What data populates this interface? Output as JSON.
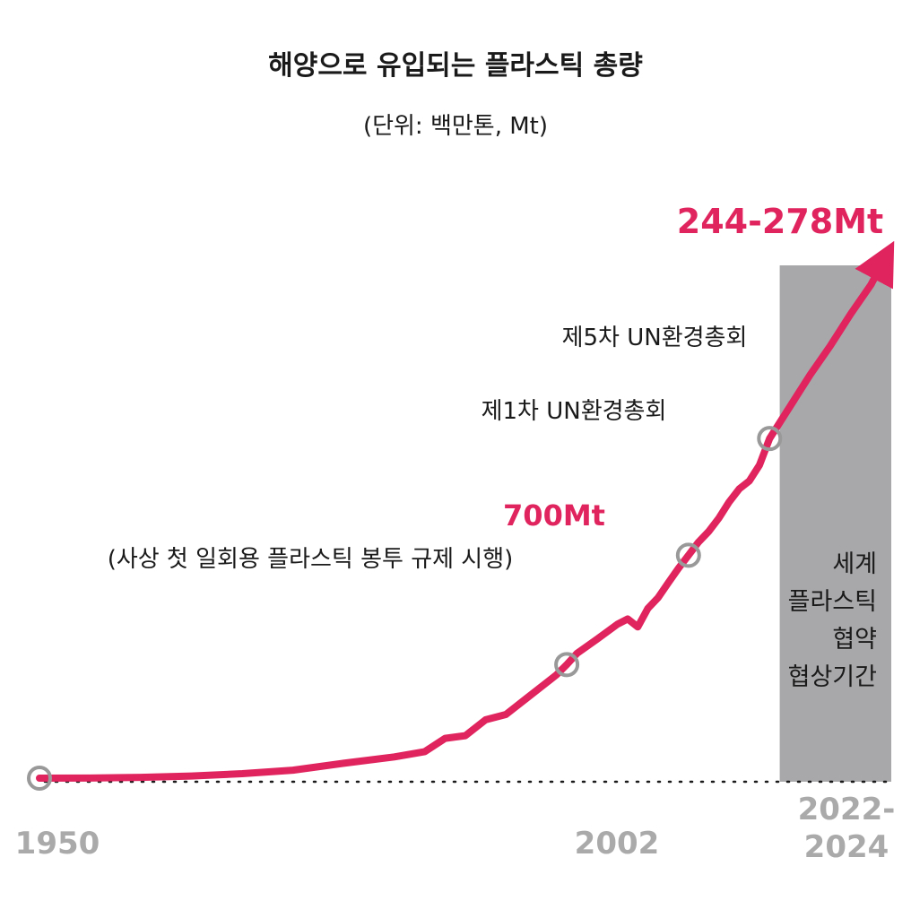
{
  "title": "해양으로 유입되는 플라스틱 총량",
  "subtitle": "(단위: 백만톤, Mt)",
  "colors": {
    "line": "#e0245e",
    "marker": "#999999",
    "band": "#a8a8ab",
    "axis_label": "#aaaaaa",
    "text": "#1a1a1a"
  },
  "chart_data": {
    "type": "line",
    "x_tick_labels": [
      "1950",
      "2002",
      "2022-\n2024"
    ],
    "series": [
      {
        "values": [
          [
            1950,
            0
          ],
          [
            1955,
            0.2
          ],
          [
            1960,
            1.5
          ],
          [
            1965,
            4
          ],
          [
            1970,
            8.5
          ],
          [
            1975,
            15
          ],
          [
            1980,
            28
          ],
          [
            1985,
            40
          ],
          [
            1988,
            50
          ],
          [
            1990,
            75
          ],
          [
            1992,
            80
          ],
          [
            1994,
            110
          ],
          [
            1996,
            120
          ],
          [
            1998,
            150
          ],
          [
            2000,
            180
          ],
          [
            2001,
            195
          ],
          [
            2002,
            214
          ],
          [
            2003,
            235
          ],
          [
            2005,
            262
          ],
          [
            2007,
            290
          ],
          [
            2008,
            300
          ],
          [
            2009,
            285
          ],
          [
            2010,
            320
          ],
          [
            2011,
            340
          ],
          [
            2012,
            368
          ],
          [
            2013,
            395
          ],
          [
            2014,
            420
          ],
          [
            2015,
            445
          ],
          [
            2016,
            465
          ],
          [
            2017,
            490
          ],
          [
            2018,
            520
          ],
          [
            2019,
            545
          ],
          [
            2020,
            560
          ],
          [
            2021,
            590
          ],
          [
            2022,
            640
          ],
          [
            2024,
            700
          ],
          [
            2026,
            760
          ],
          [
            2028,
            815
          ],
          [
            2030,
            875
          ],
          [
            2032,
            930
          ],
          [
            2034,
            990
          ]
        ]
      }
    ],
    "annotations": [
      {
        "id": "a700",
        "text": "700Mt",
        "x": 2002
      },
      {
        "id": "a_bag",
        "text": "(사상 첫 일회용 플라스틱 봉투 규제 시행)",
        "x": 2002
      },
      {
        "id": "a_unea1",
        "text": "제1차 UN환경총회",
        "x": 2014
      },
      {
        "id": "a_unea5",
        "text": "제5차 UN환경총회",
        "x": 2022
      },
      {
        "id": "a_end",
        "text": "244-278Mt",
        "x": 2034
      }
    ],
    "band": {
      "from_year": 2023,
      "to_year": 2034,
      "label": [
        "세계",
        "플라스틱",
        "협약",
        "협상기간"
      ]
    },
    "markers": [
      1950,
      2002,
      2014,
      2022
    ]
  }
}
